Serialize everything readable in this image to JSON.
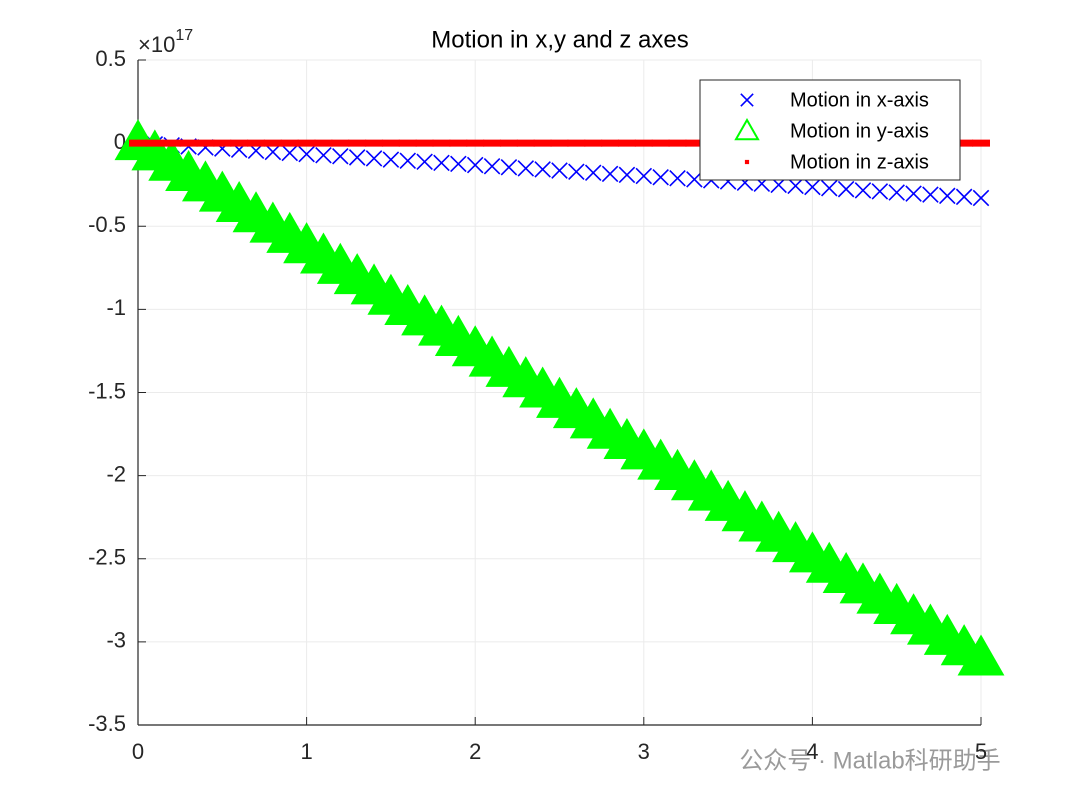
{
  "chart_data": {
    "type": "scatter",
    "title": "Motion in x,y and z axes",
    "y_multiplier": "×10",
    "y_exponent": "17",
    "watermark": "公众号 · Matlab科研助手",
    "x": [
      0,
      0.1,
      0.2,
      0.3,
      0.4,
      0.5,
      0.6,
      0.7,
      0.8,
      0.9,
      1,
      1.1,
      1.2,
      1.3,
      1.4,
      1.5,
      1.6,
      1.7,
      1.8,
      1.9,
      2,
      2.1,
      2.2,
      2.3,
      2.4,
      2.5,
      2.6,
      2.7,
      2.8,
      2.9,
      3,
      3.1,
      3.2,
      3.3,
      3.4,
      3.5,
      3.6,
      3.7,
      3.8,
      3.9,
      4,
      4.1,
      4.2,
      4.3,
      4.4,
      4.5,
      4.6,
      4.7,
      4.8,
      4.9,
      5
    ],
    "series": [
      {
        "name": "Motion in x-axis",
        "color": "#0000ff",
        "marker": "x",
        "values": [
          0,
          -0.007,
          -0.013,
          -0.02,
          -0.026,
          -0.033,
          -0.04,
          -0.046,
          -0.053,
          -0.059,
          -0.066,
          -0.073,
          -0.079,
          -0.086,
          -0.092,
          -0.099,
          -0.106,
          -0.112,
          -0.119,
          -0.125,
          -0.132,
          -0.139,
          -0.145,
          -0.152,
          -0.158,
          -0.165,
          -0.172,
          -0.178,
          -0.185,
          -0.191,
          -0.198,
          -0.205,
          -0.211,
          -0.218,
          -0.224,
          -0.231,
          -0.238,
          -0.244,
          -0.251,
          -0.257,
          -0.264,
          -0.271,
          -0.277,
          -0.284,
          -0.29,
          -0.297,
          -0.304,
          -0.31,
          -0.317,
          -0.323,
          -0.33
        ]
      },
      {
        "name": "Motion in y-axis",
        "color": "#00ff00",
        "marker": "^",
        "values": [
          0,
          -0.062,
          -0.124,
          -0.186,
          -0.248,
          -0.31,
          -0.372,
          -0.434,
          -0.496,
          -0.558,
          -0.62,
          -0.682,
          -0.744,
          -0.806,
          -0.868,
          -0.93,
          -0.992,
          -1.054,
          -1.116,
          -1.178,
          -1.24,
          -1.302,
          -1.364,
          -1.426,
          -1.488,
          -1.55,
          -1.612,
          -1.674,
          -1.736,
          -1.798,
          -1.86,
          -1.922,
          -1.984,
          -2.046,
          -2.108,
          -2.17,
          -2.232,
          -2.294,
          -2.356,
          -2.418,
          -2.48,
          -2.542,
          -2.604,
          -2.666,
          -2.728,
          -2.79,
          -2.852,
          -2.914,
          -2.976,
          -3.038,
          -3.1
        ]
      },
      {
        "name": "Motion in z-axis",
        "color": "#ff0000",
        "marker": ".",
        "values": [
          0,
          0,
          0,
          0,
          0,
          0,
          0,
          0,
          0,
          0,
          0,
          0,
          0,
          0,
          0,
          0,
          0,
          0,
          0,
          0,
          0,
          0,
          0,
          0,
          0,
          0,
          0,
          0,
          0,
          0,
          0,
          0,
          0,
          0,
          0,
          0,
          0,
          0,
          0,
          0,
          0,
          0,
          0,
          0,
          0,
          0,
          0,
          0,
          0,
          0,
          0
        ]
      }
    ],
    "xlim": [
      0,
      5
    ],
    "xticks": [
      0,
      1,
      2,
      3,
      4,
      5
    ],
    "ylim": [
      -3.5,
      0.5
    ],
    "yticks": [
      0.5,
      0,
      -0.5,
      -1,
      -1.5,
      -2,
      -2.5,
      -3,
      -3.5
    ],
    "grid": true,
    "legend": "northeast"
  }
}
